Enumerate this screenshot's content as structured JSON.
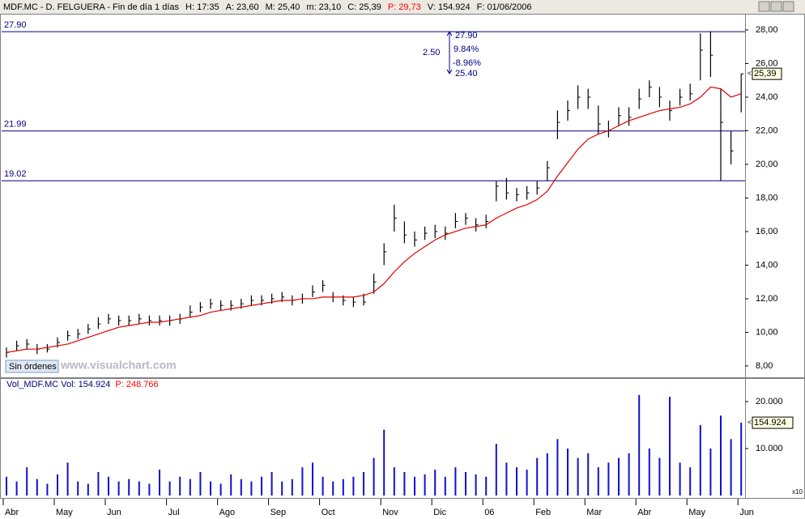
{
  "header": [
    {
      "text": "MDF.MC - D. FELGUERA - Fin de día 1 días",
      "color": "#000000"
    },
    {
      "text": "H: 17:35",
      "color": "#000000"
    },
    {
      "text": "A: 23,60",
      "color": "#000000"
    },
    {
      "text": "M: 25,40",
      "color": "#000000"
    },
    {
      "text": "m: 23,10",
      "color": "#000000"
    },
    {
      "text": "C: 25,39",
      "color": "#000000"
    },
    {
      "text": "P: 29,73",
      "color": "#ff0000"
    },
    {
      "text": "V: 154.924",
      "color": "#000000"
    },
    {
      "text": "F: 01/06/2006",
      "color": "#000000"
    }
  ],
  "button": "Sin órdenes",
  "watermark": "www.visualchart.com",
  "chart_data": [
    {
      "type": "hlc",
      "categories": [
        "Abr",
        null,
        null,
        null,
        null,
        "May",
        null,
        null,
        null,
        null,
        "Jun",
        null,
        null,
        null,
        null,
        null,
        "Jul",
        null,
        null,
        null,
        null,
        "Ago",
        null,
        null,
        null,
        null,
        "Sep",
        null,
        null,
        null,
        null,
        "Oct",
        null,
        null,
        null,
        null,
        null,
        "Nov",
        null,
        null,
        null,
        null,
        "Dic",
        null,
        null,
        null,
        null,
        "06",
        null,
        null,
        null,
        null,
        "Feb",
        null,
        null,
        null,
        null,
        "Mar",
        null,
        null,
        null,
        null,
        "Abr",
        null,
        null,
        null,
        null,
        "May",
        null,
        null,
        null,
        null,
        "Jun"
      ],
      "high": [
        9.1,
        9.5,
        9.6,
        9.3,
        9.3,
        9.7,
        10.1,
        10.2,
        10.5,
        10.9,
        11.1,
        11.0,
        11.0,
        11.1,
        11.0,
        11.0,
        11.0,
        11.1,
        11.6,
        11.8,
        12.0,
        11.9,
        11.9,
        12.0,
        12.2,
        12.2,
        12.3,
        12.4,
        12.2,
        12.3,
        12.8,
        13.1,
        12.4,
        12.2,
        12.1,
        12.3,
        13.5,
        15.3,
        17.6,
        16.6,
        16.0,
        16.3,
        16.4,
        16.3,
        17.1,
        17.1,
        16.8,
        17.0,
        19.0,
        19.2,
        18.6,
        18.7,
        19.0,
        20.2,
        23.2,
        23.8,
        24.7,
        24.5,
        23.5,
        22.6,
        23.4,
        23.4,
        24.5,
        25.0,
        24.6,
        23.8,
        24.5,
        24.8,
        27.8,
        27.9,
        24.5,
        22.0,
        25.4
      ],
      "low": [
        8.5,
        8.9,
        9.0,
        8.7,
        8.8,
        9.1,
        9.5,
        9.6,
        9.9,
        10.2,
        10.5,
        10.4,
        10.4,
        10.5,
        10.4,
        10.4,
        10.4,
        10.5,
        10.9,
        11.2,
        11.4,
        11.3,
        11.3,
        11.4,
        11.6,
        11.6,
        11.7,
        11.8,
        11.6,
        11.7,
        12.1,
        12.4,
        11.8,
        11.6,
        11.5,
        11.6,
        12.3,
        14.0,
        16.0,
        15.3,
        15.1,
        15.5,
        15.6,
        15.5,
        16.2,
        16.4,
        16.0,
        16.2,
        17.8,
        17.9,
        17.8,
        17.9,
        18.2,
        19.0,
        21.5,
        22.6,
        23.3,
        23.3,
        21.8,
        21.6,
        22.3,
        22.3,
        23.3,
        24.0,
        23.4,
        22.6,
        23.5,
        23.8,
        25.0,
        25.2,
        19.02,
        20.0,
        23.1
      ],
      "close": [
        8.8,
        9.2,
        9.3,
        9.0,
        9.0,
        9.4,
        9.8,
        9.9,
        10.2,
        10.5,
        10.8,
        10.7,
        10.7,
        10.8,
        10.7,
        10.7,
        10.7,
        10.8,
        11.2,
        11.5,
        11.7,
        11.6,
        11.6,
        11.7,
        11.9,
        11.9,
        12.0,
        12.1,
        11.9,
        12.0,
        12.4,
        12.8,
        12.1,
        11.9,
        11.8,
        11.8,
        13.0,
        14.8,
        16.8,
        15.8,
        15.5,
        15.9,
        16.0,
        15.9,
        16.6,
        16.8,
        16.4,
        16.6,
        18.7,
        18.3,
        18.2,
        18.3,
        18.6,
        19.8,
        22.5,
        23.2,
        24.0,
        24.0,
        22.4,
        22.0,
        22.9,
        22.8,
        23.9,
        24.6,
        24.0,
        23.2,
        24.0,
        24.2,
        26.8,
        26.5,
        22.5,
        20.8,
        25.39
      ],
      "ma": [
        8.8,
        8.9,
        9.0,
        9.0,
        9.1,
        9.2,
        9.3,
        9.5,
        9.7,
        9.9,
        10.1,
        10.3,
        10.4,
        10.5,
        10.6,
        10.6,
        10.7,
        10.8,
        10.9,
        11.0,
        11.2,
        11.3,
        11.4,
        11.5,
        11.6,
        11.7,
        11.8,
        11.9,
        11.9,
        12.0,
        12.0,
        12.1,
        12.1,
        12.1,
        12.1,
        12.2,
        12.4,
        12.9,
        13.6,
        14.2,
        14.7,
        15.1,
        15.5,
        15.8,
        16.0,
        16.2,
        16.3,
        16.4,
        16.8,
        17.1,
        17.4,
        17.6,
        17.9,
        18.4,
        19.3,
        20.1,
        20.9,
        21.5,
        21.8,
        22.0,
        22.3,
        22.6,
        22.8,
        23.0,
        23.2,
        23.3,
        23.4,
        23.6,
        24.0,
        24.6,
        24.5,
        24.0,
        24.2
      ],
      "color": "#000000",
      "ma_color": "#e00000",
      "ylim": [
        7.37,
        28.82
      ],
      "yticks": [
        {
          "value": 8,
          "label": "8,00"
        },
        {
          "value": 10,
          "label": "10,00"
        },
        {
          "value": 12,
          "label": "12,00"
        },
        {
          "value": 14,
          "label": "14,00"
        },
        {
          "value": 16,
          "label": "16,00"
        },
        {
          "value": 18,
          "label": "18,00"
        },
        {
          "value": 20,
          "label": "20,00"
        },
        {
          "value": 22,
          "label": "22,00"
        },
        {
          "value": 24,
          "label": "24,00"
        },
        {
          "value": 26,
          "label": "26,00"
        },
        {
          "value": 28,
          "label": "28,00"
        }
      ],
      "hlines": [
        {
          "value": 27.9,
          "label": "27.90"
        },
        {
          "value": 21.99,
          "label": "21.99"
        },
        {
          "value": 19.02,
          "label": "19.02"
        }
      ],
      "hline_color": "#000080",
      "measure": {
        "diff": "2.50",
        "high": {
          "value": 27.9,
          "label": "27.90"
        },
        "pct_up": "9.84%",
        "pct_down": "-8.96%",
        "low": {
          "value": 25.4,
          "label": "25.40"
        }
      },
      "current": {
        "value": 25.39,
        "label": "25,39"
      }
    },
    {
      "type": "bar",
      "title": [
        {
          "text": "Vol_MDF.MC  Vol: 154.924",
          "color": "#000080"
        },
        {
          "text": "P: 248.766",
          "color": "#ff0000"
        }
      ],
      "values": [
        40000,
        30000,
        60000,
        35000,
        25000,
        45000,
        70000,
        30000,
        25000,
        50000,
        40000,
        30000,
        35000,
        30000,
        25000,
        55000,
        30000,
        40000,
        35000,
        50000,
        30000,
        25000,
        45000,
        35000,
        30000,
        40000,
        50000,
        30000,
        35000,
        60000,
        70000,
        40000,
        30000,
        35000,
        40000,
        50000,
        80000,
        140000,
        60000,
        50000,
        40000,
        45000,
        55000,
        40000,
        60000,
        50000,
        45000,
        40000,
        110000,
        70000,
        60000,
        55000,
        80000,
        90000,
        120000,
        100000,
        80000,
        90000,
        60000,
        70000,
        80000,
        90000,
        214000,
        100000,
        80000,
        210000,
        70000,
        60000,
        150000,
        100000,
        170000,
        120000,
        154924
      ],
      "color": "#1010d0",
      "ylim": [
        0,
        224000
      ],
      "yticks": [
        {
          "value": 100000,
          "label": "10.000"
        },
        {
          "value": 200000,
          "label": "20.000"
        }
      ],
      "scale_label": "x10",
      "current": {
        "value": 154924,
        "label": "154.924"
      }
    }
  ]
}
